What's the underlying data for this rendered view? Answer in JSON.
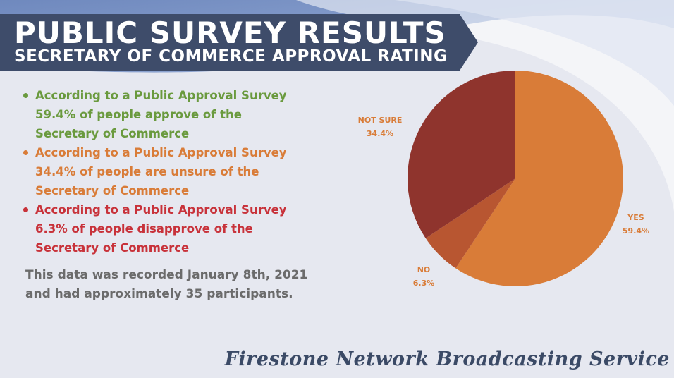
{
  "header": {
    "title": "PUBLIC SURVEY RESULTS",
    "subtitle": "SECRETARY OF COMMERCE APPROVAL RATING"
  },
  "bullets": [
    {
      "lines": [
        "According to a Public Approval Survey",
        "59.4% of people approve of the",
        "Secretary of Commerce"
      ],
      "color": "#6a9a3e"
    },
    {
      "lines": [
        "According to a Public Approval Survey",
        "34.4% of people are unsure of the",
        "Secretary of Commerce"
      ],
      "color": "#d97c38"
    },
    {
      "lines": [
        "According to a Public Approval Survey",
        "6.3% of people disapprove of the",
        "Secretary of Commerce"
      ],
      "color": "#c8323a"
    }
  ],
  "note": {
    "line1": "This data was recorded January 8th, 2021",
    "line2": "and had approximately 35 participants."
  },
  "footer": "Firestone Network Broadcasting Service",
  "chart_data": {
    "type": "pie",
    "slices": [
      {
        "label": "YES",
        "value": 59.4,
        "value_label": "59.4%",
        "color": "#d97c38"
      },
      {
        "label": "NO",
        "value": 6.3,
        "value_label": "6.3%",
        "color": "#b85631"
      },
      {
        "label": "NOT SURE",
        "value": 34.4,
        "value_label": "34.4%",
        "color": "#8f342d"
      }
    ],
    "start": "12 o'clock, clockwise",
    "label_color": "#d97c38"
  },
  "colors": {
    "banner": "#3e4c6a",
    "background": "#e6e8f0",
    "footer_text": "#3b4a66",
    "note_text": "#6b6b6b"
  }
}
